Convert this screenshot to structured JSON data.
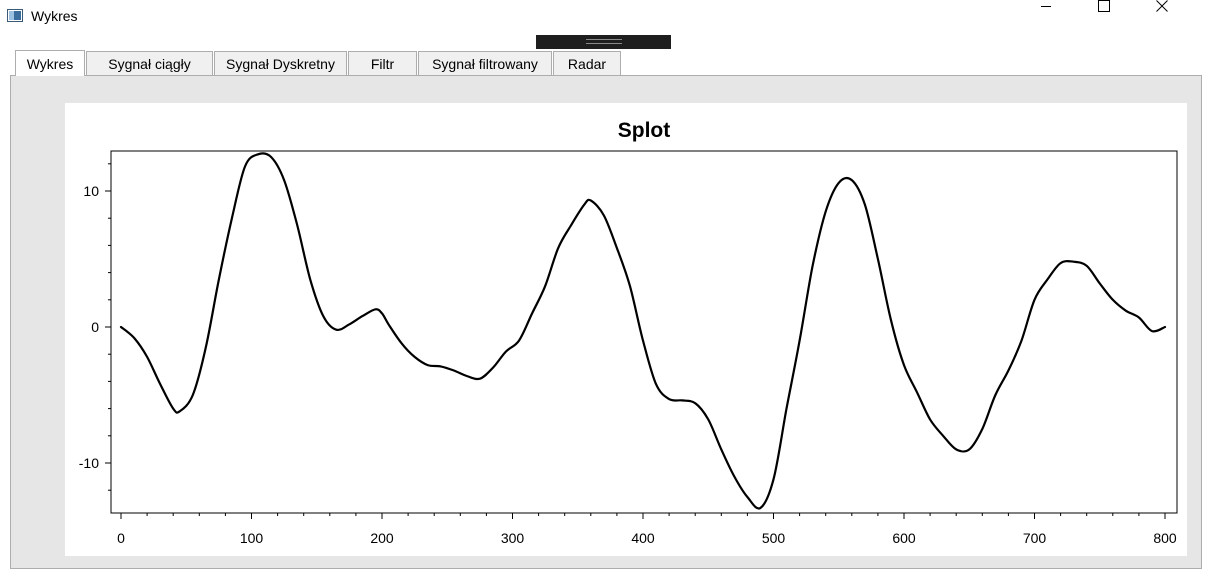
{
  "window": {
    "title": "Wykres",
    "icon": "app-window-icon"
  },
  "window_controls": [
    "minimize-icon",
    "maximize-icon",
    "close-icon"
  ],
  "tabs": [
    {
      "label": "Wykres",
      "active": true
    },
    {
      "label": "Sygnał ciągły",
      "active": false
    },
    {
      "label": "Sygnał Dyskretny",
      "active": false
    },
    {
      "label": "Filtr",
      "active": false
    },
    {
      "label": "Sygnał filtrowany",
      "active": false
    },
    {
      "label": "Radar",
      "active": false
    }
  ],
  "chart_data": {
    "type": "line",
    "title": "Splot",
    "xlabel": "",
    "ylabel": "",
    "xlim": [
      0,
      800
    ],
    "ylim": [
      -13.5,
      13
    ],
    "x_ticks": [
      0,
      100,
      200,
      300,
      400,
      500,
      600,
      700,
      800
    ],
    "y_ticks": [
      -10,
      0,
      10
    ],
    "grid": false,
    "series": [
      {
        "color": "#000000",
        "points": [
          [
            0,
            0
          ],
          [
            10,
            -0.8
          ],
          [
            20,
            -2.2
          ],
          [
            30,
            -4.2
          ],
          [
            40,
            -6.0
          ],
          [
            45,
            -6.2
          ],
          [
            55,
            -5.0
          ],
          [
            65,
            -1.5
          ],
          [
            75,
            3.5
          ],
          [
            85,
            8.0
          ],
          [
            95,
            11.8
          ],
          [
            105,
            12.7
          ],
          [
            115,
            12.5
          ],
          [
            125,
            10.8
          ],
          [
            135,
            7.5
          ],
          [
            145,
            3.5
          ],
          [
            155,
            0.8
          ],
          [
            165,
            -0.2
          ],
          [
            175,
            0.2
          ],
          [
            185,
            0.8
          ],
          [
            195,
            1.3
          ],
          [
            200,
            1.0
          ],
          [
            205,
            0.2
          ],
          [
            215,
            -1.2
          ],
          [
            225,
            -2.2
          ],
          [
            235,
            -2.8
          ],
          [
            245,
            -2.9
          ],
          [
            255,
            -3.2
          ],
          [
            265,
            -3.6
          ],
          [
            275,
            -3.8
          ],
          [
            285,
            -3.0
          ],
          [
            295,
            -1.8
          ],
          [
            305,
            -1.0
          ],
          [
            315,
            1.0
          ],
          [
            325,
            3.0
          ],
          [
            335,
            5.8
          ],
          [
            345,
            7.5
          ],
          [
            355,
            9.0
          ],
          [
            360,
            9.3
          ],
          [
            370,
            8.2
          ],
          [
            380,
            5.8
          ],
          [
            390,
            3.0
          ],
          [
            400,
            -1.0
          ],
          [
            410,
            -4.2
          ],
          [
            420,
            -5.3
          ],
          [
            430,
            -5.4
          ],
          [
            440,
            -5.6
          ],
          [
            450,
            -6.8
          ],
          [
            460,
            -9.0
          ],
          [
            470,
            -11.0
          ],
          [
            480,
            -12.5
          ],
          [
            490,
            -13.3
          ],
          [
            500,
            -11.2
          ],
          [
            510,
            -6.0
          ],
          [
            520,
            -1.0
          ],
          [
            530,
            4.5
          ],
          [
            540,
            8.5
          ],
          [
            550,
            10.6
          ],
          [
            560,
            10.8
          ],
          [
            570,
            9.0
          ],
          [
            580,
            5.0
          ],
          [
            590,
            0.5
          ],
          [
            600,
            -2.8
          ],
          [
            610,
            -4.8
          ],
          [
            620,
            -6.8
          ],
          [
            630,
            -8.0
          ],
          [
            640,
            -9.0
          ],
          [
            650,
            -9.0
          ],
          [
            660,
            -7.5
          ],
          [
            670,
            -5.0
          ],
          [
            680,
            -3.2
          ],
          [
            690,
            -1.0
          ],
          [
            700,
            2.0
          ],
          [
            710,
            3.5
          ],
          [
            720,
            4.7
          ],
          [
            730,
            4.8
          ],
          [
            740,
            4.5
          ],
          [
            750,
            3.2
          ],
          [
            760,
            2.0
          ],
          [
            770,
            1.2
          ],
          [
            780,
            0.7
          ],
          [
            790,
            -0.3
          ],
          [
            800,
            0
          ]
        ]
      }
    ]
  }
}
